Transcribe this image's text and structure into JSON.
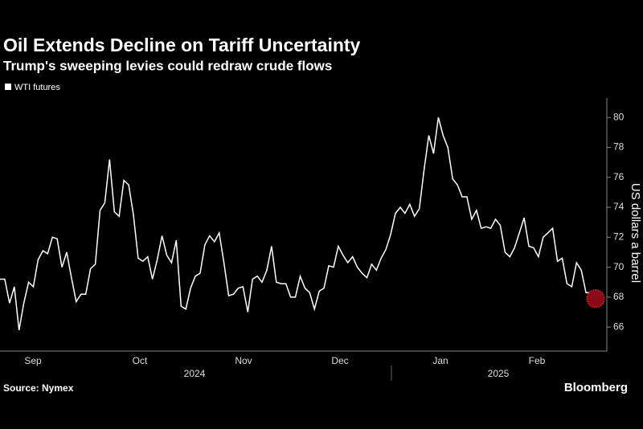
{
  "chart_data": {
    "type": "line",
    "title": "Oil Extends Decline on Tariff Uncertainty",
    "subtitle": "Trump's sweeping levies could redraw crude flows",
    "y_axis_label": "US dollars a barrel",
    "source": "Source: Nymex",
    "brand": "Bloomberg",
    "xticks": [
      "Sep",
      "Oct",
      "Nov",
      "Dec",
      "Jan",
      "Feb"
    ],
    "years": [
      "2024",
      "2025"
    ],
    "ylim": [
      64.4,
      81.3
    ],
    "yticks": [
      66,
      68,
      70,
      72,
      74,
      76,
      78,
      80
    ],
    "series": [
      {
        "name": "WTI futures",
        "color": "#ffffff",
        "values": [
          69.2,
          69.2,
          67.6,
          68.7,
          65.8,
          67.6,
          69.0,
          68.7,
          70.5,
          71.1,
          70.9,
          72.0,
          71.9,
          70.0,
          71.0,
          69.3,
          67.7,
          68.2,
          68.2,
          69.9,
          70.2,
          73.8,
          74.3,
          77.2,
          73.7,
          73.4,
          75.8,
          75.5,
          73.5,
          70.6,
          70.4,
          70.7,
          69.2,
          70.5,
          72.1,
          70.8,
          70.3,
          71.8,
          67.4,
          67.2,
          68.6,
          69.4,
          69.6,
          71.5,
          72.1,
          71.7,
          72.3,
          70.3,
          68.1,
          68.2,
          68.6,
          68.7,
          67.0,
          69.2,
          69.4,
          69.0,
          69.8,
          71.4,
          69.0,
          68.9,
          68.9,
          68.0,
          68.0,
          69.4,
          68.6,
          68.3,
          67.2,
          68.4,
          68.6,
          70.1,
          70.0,
          71.4,
          70.8,
          70.3,
          70.7,
          70.0,
          69.6,
          69.3,
          70.2,
          69.8,
          70.6,
          71.2,
          72.2,
          73.6,
          74.0,
          73.6,
          74.2,
          73.4,
          73.9,
          76.5,
          78.8,
          77.6,
          80.0,
          78.8,
          78.0,
          75.9,
          75.5,
          74.7,
          74.7,
          73.2,
          73.8,
          72.6,
          72.7,
          72.6,
          73.2,
          72.8,
          71.0,
          70.7,
          71.3,
          72.3,
          73.3,
          71.4,
          71.3,
          70.7,
          72.0,
          72.3,
          72.6,
          70.4,
          70.6,
          68.9,
          68.7,
          70.3,
          69.8,
          68.3,
          68.3,
          67.9
        ]
      }
    ]
  }
}
